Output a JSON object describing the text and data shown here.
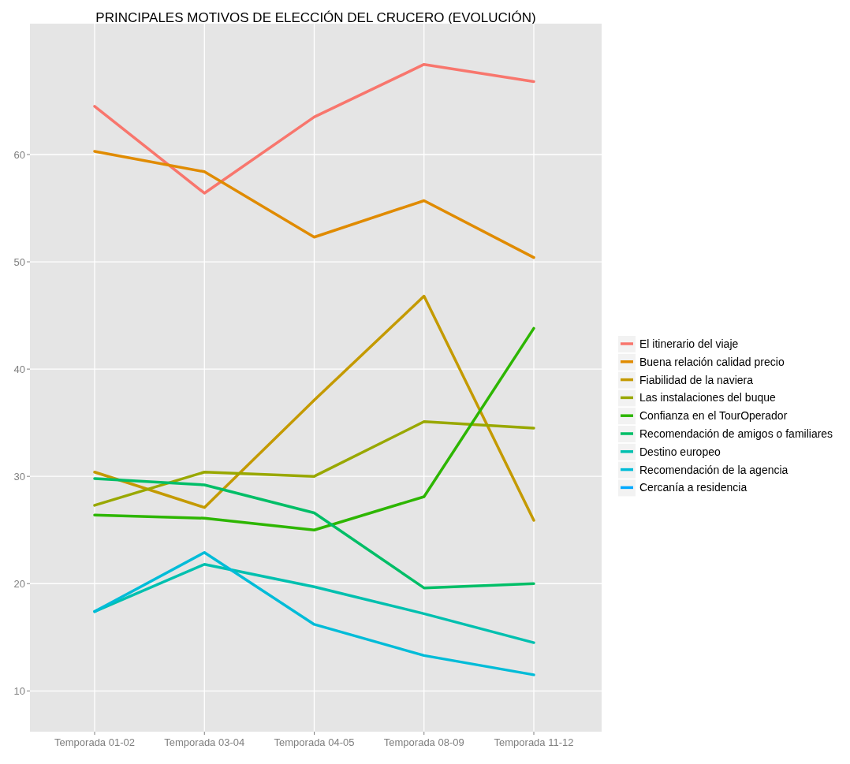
{
  "chart_data": {
    "type": "line",
    "title": "PRINCIPALES MOTIVOS DE ELECCIÓN DEL CRUCERO (EVOLUCIÓN)",
    "categories": [
      "Temporada 01-02",
      "Temporada 03-04",
      "Temporada 04-05",
      "Temporada 08-09",
      "Temporada 11-12"
    ],
    "series": [
      {
        "name": "El itinerario del viaje",
        "color": "#f8766d",
        "values": [
          64.5,
          56.4,
          63.5,
          68.4,
          66.8
        ]
      },
      {
        "name": "Buena relación calidad precio",
        "color": "#e08b00",
        "values": [
          60.3,
          58.4,
          52.3,
          55.7,
          50.4
        ]
      },
      {
        "name": "Fiabilidad de la naviera",
        "color": "#c49a00",
        "values": [
          30.4,
          27.1,
          37.1,
          46.8,
          25.9
        ]
      },
      {
        "name": "Las instalaciones del buque",
        "color": "#99a800",
        "values": [
          27.3,
          30.4,
          30.0,
          35.1,
          34.5
        ]
      },
      {
        "name": "Confianza en el TourOperador",
        "color": "#2db600",
        "values": [
          26.4,
          26.1,
          25.0,
          28.1,
          43.8
        ]
      },
      {
        "name": "Recomendación de amigos o familiares",
        "color": "#00be67",
        "values": [
          29.8,
          29.2,
          26.6,
          19.6,
          20.0
        ]
      },
      {
        "name": "Destino europeo",
        "color": "#00c0af",
        "values": [
          17.4,
          21.8,
          19.7,
          17.2,
          14.5
        ]
      },
      {
        "name": "Recomendación de la agencia",
        "color": "#00bcd8",
        "values": [
          17.4,
          22.9,
          16.2,
          13.3,
          11.5
        ]
      },
      {
        "name": "Cercanía a residencia",
        "color": "#00a9ff",
        "values": [
          null,
          null,
          null,
          null,
          null
        ]
      }
    ],
    "ylim": [
      6.2,
      72.2
    ],
    "yticks": [
      10,
      20,
      30,
      40,
      50,
      60
    ],
    "grid": true,
    "legend": "right"
  }
}
